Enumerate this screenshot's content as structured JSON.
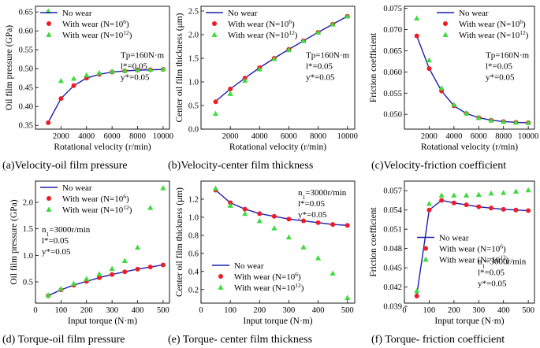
{
  "chart_data": [
    {
      "id": "a",
      "type": "scatter",
      "caption": "(a)Velocity-oil film pressure",
      "xlabel": "Rotational velocity (r/min)",
      "ylabel": "Oil film pressure (GPa)",
      "xlim": [
        0,
        10500
      ],
      "ylim": [
        0.34,
        0.665
      ],
      "xticks": [
        2000,
        4000,
        6000,
        8000,
        10000
      ],
      "yticks": [
        0.35,
        0.4,
        0.45,
        0.5,
        0.55,
        0.6,
        0.65
      ],
      "yfmt": 2,
      "legend": {
        "position": "top-left",
        "items": [
          {
            "kind": "line",
            "name": "No wear"
          },
          {
            "kind": "dot",
            "name": "With wear (N=10",
            "sup": "6",
            "close": ")"
          },
          {
            "kind": "tri",
            "name": "With wear (N=10",
            "sup": "12",
            "close": ")"
          }
        ]
      },
      "annotation_pos": "right-middle",
      "annotation": [
        {
          "text": "Tp=160N·m"
        },
        {
          "text": "l*=0.05"
        },
        {
          "text": "y*=0.05"
        }
      ],
      "series": [
        {
          "name": "No wear",
          "kind": "line",
          "x": [
            1000,
            2000,
            3000,
            4000,
            5000,
            6000,
            7000,
            8000,
            9000,
            10000
          ],
          "y": [
            0.358,
            0.421,
            0.455,
            0.475,
            0.485,
            0.491,
            0.494,
            0.496,
            0.497,
            0.498
          ]
        },
        {
          "name": "With wear (N=10^6)",
          "kind": "dot",
          "x": [
            1000,
            2000,
            3000,
            4000,
            5000,
            6000,
            7000,
            8000,
            9000,
            10000
          ],
          "y": [
            0.357,
            0.421,
            0.455,
            0.475,
            0.485,
            0.491,
            0.494,
            0.496,
            0.497,
            0.498
          ]
        },
        {
          "name": "With wear (N=10^12)",
          "kind": "tri",
          "x": [
            1000,
            2000,
            3000,
            4000,
            5000,
            6000,
            7000,
            8000,
            9000,
            10000
          ],
          "y": [
            0.652,
            0.468,
            0.474,
            0.483,
            0.489,
            0.493,
            0.495,
            0.497,
            0.498,
            0.499
          ]
        }
      ]
    },
    {
      "id": "b",
      "type": "scatter",
      "caption": "(b)Velocity-center film thickness",
      "xlabel": "Rotational velocity (r/min)",
      "ylabel": "Center oil film thickness (μm)",
      "xlim": [
        0,
        10500
      ],
      "ylim": [
        0,
        2.6
      ],
      "xticks": [
        2000,
        4000,
        6000,
        8000,
        10000
      ],
      "yticks": [
        0.0,
        0.5,
        1.0,
        1.5,
        2.0,
        2.5
      ],
      "yfmt": 1,
      "legend": {
        "position": "top-left",
        "items": [
          {
            "kind": "line",
            "name": "No wear"
          },
          {
            "kind": "dot",
            "name": "With wear (N=10",
            "sup": "6",
            "close": ")"
          },
          {
            "kind": "tri",
            "name": "With wear (N=10",
            "sup": "12",
            "close": ")"
          }
        ]
      },
      "annotation_pos": "right-middle",
      "annotation": [
        {
          "text": "Tp=160N·m"
        },
        {
          "text": "l*=0.05"
        },
        {
          "text": "y*=0.05"
        }
      ],
      "series": [
        {
          "name": "No wear",
          "kind": "line",
          "x": [
            1000,
            2000,
            3000,
            4000,
            5000,
            6000,
            7000,
            8000,
            9000,
            10000
          ],
          "y": [
            0.59,
            0.85,
            1.08,
            1.3,
            1.5,
            1.69,
            1.87,
            2.05,
            2.22,
            2.39
          ]
        },
        {
          "name": "With wear (N=10^6)",
          "kind": "dot",
          "x": [
            1000,
            2000,
            3000,
            4000,
            5000,
            6000,
            7000,
            8000,
            9000,
            10000
          ],
          "y": [
            0.58,
            0.85,
            1.08,
            1.3,
            1.5,
            1.69,
            1.87,
            2.05,
            2.22,
            2.39
          ]
        },
        {
          "name": "With wear (N=10^12)",
          "kind": "tri",
          "x": [
            1000,
            2000,
            3000,
            4000,
            5000,
            6000,
            7000,
            8000,
            9000,
            10000
          ],
          "y": [
            0.33,
            0.75,
            1.03,
            1.27,
            1.49,
            1.68,
            1.87,
            2.05,
            2.22,
            2.39
          ]
        }
      ]
    },
    {
      "id": "c",
      "type": "scatter",
      "caption": "(c)Velocity-friction coefficient",
      "xlabel": "Rotational velocity (r/min)",
      "ylabel": "Friction coefficient",
      "xlim": [
        0,
        10500
      ],
      "ylim": [
        0.0465,
        0.0755
      ],
      "xticks": [
        2000,
        4000,
        6000,
        8000,
        10000
      ],
      "yticks": [
        0.05,
        0.055,
        0.06,
        0.065,
        0.07,
        0.075
      ],
      "yfmt": 3,
      "legend": {
        "position": "top-right",
        "items": [
          {
            "kind": "line",
            "name": "No wear"
          },
          {
            "kind": "dot",
            "name": "With wear (N=10",
            "sup": "6",
            "close": ")"
          },
          {
            "kind": "tri",
            "name": "With wear (N=10",
            "sup": "12",
            "close": ")"
          }
        ]
      },
      "annotation_pos": "right-middle",
      "annotation": [
        {
          "text": "Tp=160N·m"
        },
        {
          "text": "l*=0.05"
        },
        {
          "text": "y*=0.05"
        }
      ],
      "series": [
        {
          "name": "No wear",
          "kind": "line",
          "x": [
            1000,
            2000,
            3000,
            4000,
            5000,
            6000,
            7000,
            8000,
            9000,
            10000
          ],
          "y": [
            0.0685,
            0.0608,
            0.0555,
            0.052,
            0.0502,
            0.0492,
            0.0486,
            0.0483,
            0.0481,
            0.048
          ]
        },
        {
          "name": "With wear (N=10^6)",
          "kind": "dot",
          "x": [
            1000,
            2000,
            3000,
            4000,
            5000,
            6000,
            7000,
            8000,
            9000,
            10000
          ],
          "y": [
            0.0685,
            0.0608,
            0.0555,
            0.052,
            0.0502,
            0.0492,
            0.0486,
            0.0483,
            0.0481,
            0.048
          ]
        },
        {
          "name": "With wear (N=10^12)",
          "kind": "tri",
          "x": [
            1000,
            2000,
            3000,
            4000,
            5000,
            6000,
            7000,
            8000,
            9000,
            10000
          ],
          "y": [
            0.0727,
            0.0628,
            0.0562,
            0.0523,
            0.0503,
            0.0492,
            0.0486,
            0.0483,
            0.0481,
            0.048
          ]
        }
      ]
    },
    {
      "id": "d",
      "type": "scatter",
      "caption": "(d) Torque-oil film pressure",
      "xlabel": "Input torque (N·m)",
      "ylabel": "Oil film pressure (GPa)",
      "xlim": [
        0,
        525
      ],
      "ylim": [
        0.1,
        2.4
      ],
      "xticks": [
        0,
        100,
        200,
        300,
        400,
        500
      ],
      "yticks": [
        0.5,
        1.0,
        1.5,
        2.0
      ],
      "yfmt": 1,
      "legend": {
        "position": "top-left",
        "items": [
          {
            "kind": "line",
            "name": "No wear"
          },
          {
            "kind": "dot",
            "name": "With wear (N=10",
            "sup": "6",
            "close": ")"
          },
          {
            "kind": "tri",
            "name": "With wear (N=10",
            "sup": "12",
            "close": ")"
          }
        ]
      },
      "annotation_pos": "left-middle",
      "annotation": [
        {
          "text": "n",
          "sub": "1",
          "after": "=3000r/min"
        },
        {
          "text": "l*=0.05"
        },
        {
          "text": "y*=0.05"
        }
      ],
      "series": [
        {
          "name": "No wear",
          "kind": "line",
          "x": [
            50,
            100,
            150,
            200,
            250,
            300,
            350,
            400,
            450,
            500
          ],
          "y": [
            0.24,
            0.35,
            0.44,
            0.51,
            0.58,
            0.64,
            0.69,
            0.74,
            0.78,
            0.82
          ]
        },
        {
          "name": "With wear (N=10^6)",
          "kind": "dot",
          "x": [
            50,
            100,
            150,
            200,
            250,
            300,
            350,
            400,
            450,
            500
          ],
          "y": [
            0.24,
            0.35,
            0.44,
            0.51,
            0.58,
            0.64,
            0.69,
            0.74,
            0.78,
            0.82
          ]
        },
        {
          "name": "With wear (N=10^12)",
          "kind": "tri",
          "x": [
            50,
            100,
            150,
            200,
            250,
            300,
            350,
            400,
            450,
            500
          ],
          "y": [
            0.25,
            0.37,
            0.47,
            0.56,
            0.65,
            0.75,
            0.9,
            1.15,
            1.9,
            2.27
          ]
        }
      ]
    },
    {
      "id": "e",
      "type": "scatter",
      "caption": "(e) Torque- center film thickness",
      "xlabel": "Input torque (N·m)",
      "ylabel": "Center oil film thickness (μm)",
      "xlim": [
        0,
        525
      ],
      "ylim": [
        0.05,
        1.4
      ],
      "xticks": [
        0,
        100,
        200,
        300,
        400,
        500
      ],
      "yticks": [
        0.2,
        0.4,
        0.6,
        0.8,
        1.0,
        1.2
      ],
      "yfmt": 1,
      "legend": {
        "position": "bottom-left",
        "items": [
          {
            "kind": "line",
            "name": "No wear"
          },
          {
            "kind": "dot",
            "name": "With wear (N=10",
            "sup": "6",
            "close": ")"
          },
          {
            "kind": "tri",
            "name": "With wear (N=10",
            "sup": "12",
            "close": ")"
          }
        ]
      },
      "annotation_pos": "right-top",
      "annotation": [
        {
          "text": "n",
          "sub": "1",
          "after": "=3000r/min"
        },
        {
          "text": "l*=0.05"
        },
        {
          "text": "y*=0.05"
        }
      ],
      "series": [
        {
          "name": "No wear",
          "kind": "line",
          "x": [
            50,
            100,
            150,
            200,
            250,
            300,
            350,
            400,
            450,
            500
          ],
          "y": [
            1.3,
            1.16,
            1.09,
            1.04,
            1.01,
            0.98,
            0.96,
            0.94,
            0.92,
            0.91
          ]
        },
        {
          "name": "With wear (N=10^6)",
          "kind": "dot",
          "x": [
            50,
            100,
            150,
            200,
            250,
            300,
            350,
            400,
            450,
            500
          ],
          "y": [
            1.3,
            1.16,
            1.09,
            1.04,
            1.01,
            0.98,
            0.96,
            0.94,
            0.92,
            0.91
          ]
        },
        {
          "name": "With wear (N=10^12)",
          "kind": "tri",
          "x": [
            50,
            100,
            150,
            200,
            250,
            300,
            350,
            400,
            450,
            500
          ],
          "y": [
            1.32,
            1.13,
            1.04,
            0.96,
            0.88,
            0.78,
            0.67,
            0.55,
            0.38,
            0.11
          ]
        }
      ]
    },
    {
      "id": "f",
      "type": "scatter",
      "caption": "(f) Torque- friction coefficient",
      "xlabel": "Input torque (N·m)",
      "ylabel": "Friction coefficient",
      "xlim": [
        0,
        525
      ],
      "ylim": [
        0.0395,
        0.0585
      ],
      "xticks": [
        0,
        100,
        200,
        300,
        400,
        500
      ],
      "yticks": [
        0.039,
        0.042,
        0.045,
        0.048,
        0.051,
        0.054,
        0.057
      ],
      "yfmt": 3,
      "legend": {
        "position": "center-right",
        "items": [
          {
            "kind": "line",
            "name": "No wear"
          },
          {
            "kind": "dot",
            "name": "With wear (N=10",
            "sup": "6",
            "close": ")"
          },
          {
            "kind": "tri",
            "name": "With wear (N=10",
            "sup": "12",
            "close": ")"
          }
        ]
      },
      "annotation_pos": "right-bottom",
      "annotation": [
        {
          "text": "n",
          "sub": "1",
          "after": "=3000r/min"
        },
        {
          "text": "l*=0.05"
        },
        {
          "text": "y*=0.05"
        }
      ],
      "series": [
        {
          "name": "No wear",
          "kind": "line",
          "x": [
            50,
            100,
            150,
            200,
            250,
            300,
            350,
            400,
            450,
            500
          ],
          "y": [
            0.0408,
            0.054,
            0.0555,
            0.0551,
            0.0548,
            0.0545,
            0.0543,
            0.0541,
            0.054,
            0.0539
          ]
        },
        {
          "name": "With wear (N=10^6)",
          "kind": "dot",
          "x": [
            50,
            100,
            150,
            200,
            250,
            300,
            350,
            400,
            450,
            500
          ],
          "y": [
            0.0406,
            0.054,
            0.0555,
            0.0551,
            0.0548,
            0.0545,
            0.0543,
            0.0541,
            0.054,
            0.0539
          ]
        },
        {
          "name": "With wear (N=10^12)",
          "kind": "tri",
          "x": [
            50,
            100,
            150,
            200,
            250,
            300,
            350,
            400,
            450,
            500
          ],
          "y": [
            0.0414,
            0.055,
            0.0563,
            0.0563,
            0.0563,
            0.0564,
            0.0566,
            0.0567,
            0.0569,
            0.0571
          ]
        }
      ]
    }
  ],
  "colors": {
    "line": "#1c1fae",
    "dot": "#ee1c25",
    "tri": "#3ddc3d",
    "axis": "#000000"
  }
}
